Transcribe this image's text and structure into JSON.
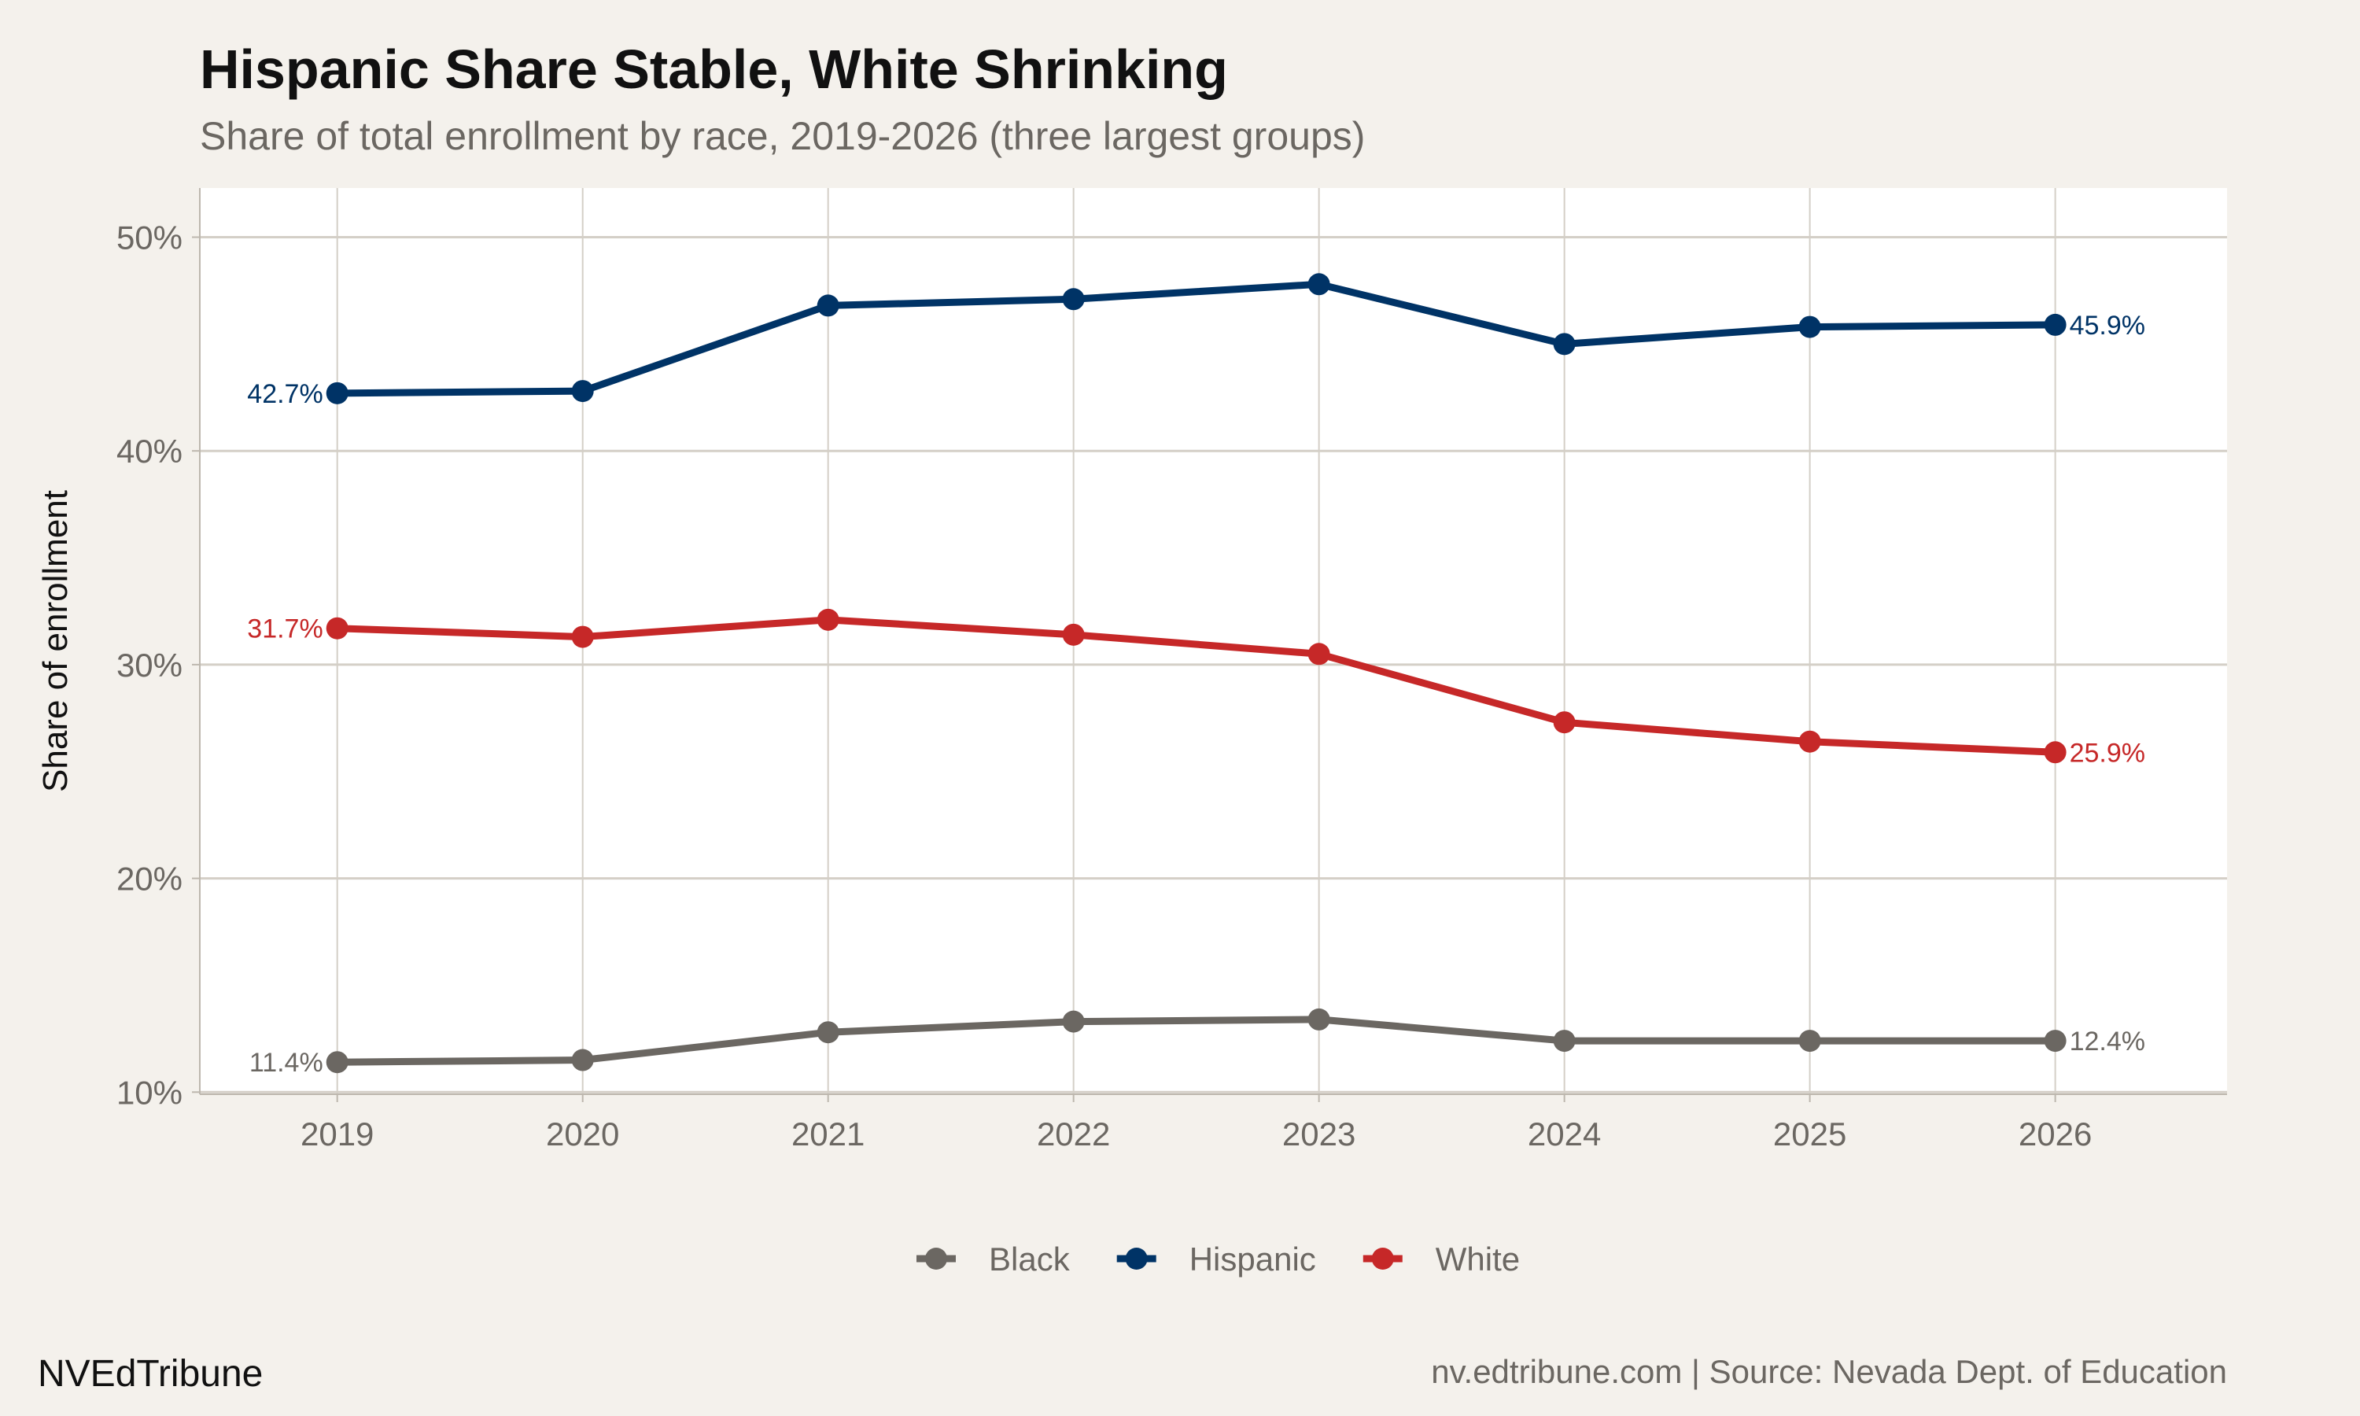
{
  "title": "Hispanic Share Stable, White Shrinking",
  "subtitle": "Share of total enrollment by race, 2019-2026 (three largest groups)",
  "caption_left": "NVEdTribune",
  "caption_right": "nv.edtribune.com | Source: Nevada Dept. of Education",
  "chart_data": {
    "type": "line",
    "title": "Hispanic Share Stable, White Shrinking",
    "subtitle": "Share of total enrollment by race, 2019-2026 (three largest groups)",
    "xlabel": "",
    "ylabel": "Share of enrollment",
    "x": [
      2019,
      2020,
      2021,
      2022,
      2023,
      2024,
      2025,
      2026
    ],
    "x_tick_labels": [
      "2019",
      "2020",
      "2021",
      "2022",
      "2023",
      "2024",
      "2025",
      "2026"
    ],
    "y_ticks": [
      10,
      20,
      30,
      40,
      50
    ],
    "y_tick_labels": [
      "10%",
      "20%",
      "30%",
      "40%",
      "50%"
    ],
    "ylim": [
      9.9,
      52.3
    ],
    "grid": true,
    "legend_position": "bottom",
    "series": [
      {
        "name": "Black",
        "color": "#6b6762",
        "values": [
          11.4,
          11.5,
          12.8,
          13.3,
          13.4,
          12.4,
          12.4,
          12.4
        ],
        "start_label": "11.4%",
        "end_label": "12.4%"
      },
      {
        "name": "Hispanic",
        "color": "#003366",
        "values": [
          42.7,
          42.8,
          46.8,
          47.1,
          47.8,
          45.0,
          45.8,
          45.9
        ],
        "start_label": "42.7%",
        "end_label": "45.9%"
      },
      {
        "name": "White",
        "color": "#c62828",
        "values": [
          31.7,
          31.3,
          32.1,
          31.4,
          30.5,
          27.3,
          26.4,
          25.9
        ],
        "start_label": "31.7%",
        "end_label": "25.9%"
      }
    ]
  }
}
